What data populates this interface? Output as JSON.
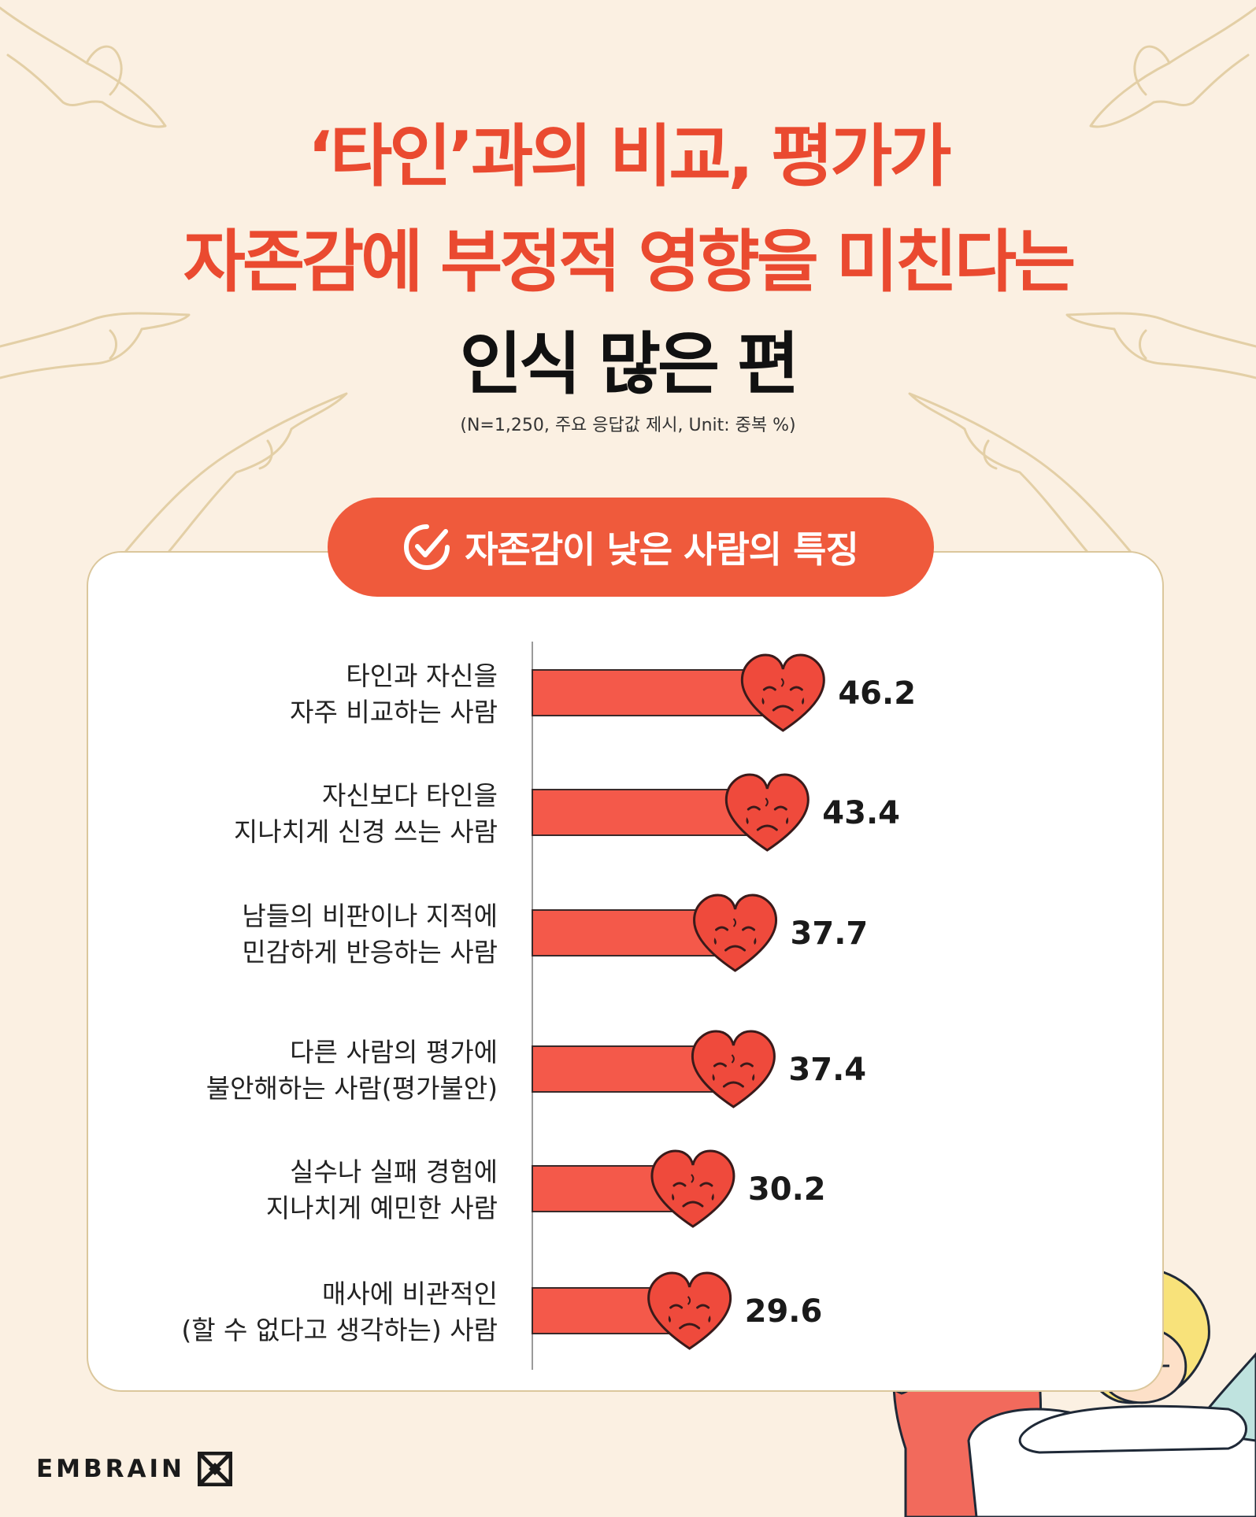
{
  "header": {
    "title_line1": "‘타인’과의 비교, 평가가",
    "title_line2": "자존감에 부정적 영향을 미친다는",
    "title_line3": "인식 많은 편",
    "note": "(N=1,250, 주요 응답값 제시,  Unit: 중복 %)"
  },
  "section": {
    "label": "자존감이 낮은 사람의 특징",
    "icon": "check-circle-icon"
  },
  "brand": {
    "name": "EMBRAIN",
    "logo_icon": "embrain-logo-icon"
  },
  "colors": {
    "title_accent": "#ea4a30",
    "bar": "#f4594a",
    "heart": "#ef4a3c",
    "pill": "#ef5a3c",
    "background": "#fbf0e2"
  },
  "chart_data": {
    "type": "bar",
    "orientation": "horizontal",
    "categories": [
      [
        "타인과 자신을",
        "자주 비교하는 사람"
      ],
      [
        "자신보다 타인을",
        "지나치게 신경 쓰는 사람"
      ],
      [
        "남들의 비판이나 지적에",
        "민감하게 반응하는 사람"
      ],
      [
        "다른 사람의 평가에",
        "불안해하는 사람(평가불안)"
      ],
      [
        "실수나 실패 경험에",
        "지나치게 예민한 사람"
      ],
      [
        "매사에 비관적인",
        "(할 수 없다고 생각하는) 사람"
      ]
    ],
    "values": [
      46.2,
      43.4,
      37.7,
      37.4,
      30.2,
      29.6
    ],
    "value_labels": [
      "46.2",
      "43.4",
      "37.7",
      "37.4",
      "30.2",
      "29.6"
    ],
    "unit": "%",
    "grid": false,
    "marker": "crying-heart-icon"
  }
}
